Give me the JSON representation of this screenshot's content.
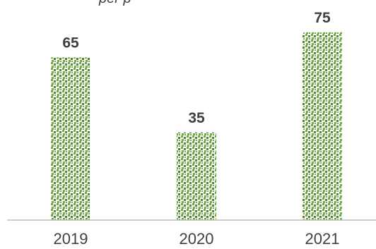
{
  "chart_data": {
    "type": "bar",
    "title": "",
    "xlabel": "",
    "ylabel": "",
    "categories": [
      "2019",
      "2020",
      "2021"
    ],
    "values": [
      65,
      35,
      75
    ],
    "data_labels": [
      "65",
      "35",
      "75"
    ],
    "ylim": [
      0,
      80
    ],
    "grid": false,
    "legend": "none",
    "bar_pattern": "dotted-fill",
    "colors": {
      "bar": "#70ad47",
      "bar_dark": "#548235",
      "bar_background": "#ffffff",
      "axis": "#bfbfbf",
      "text": "#404040"
    }
  }
}
